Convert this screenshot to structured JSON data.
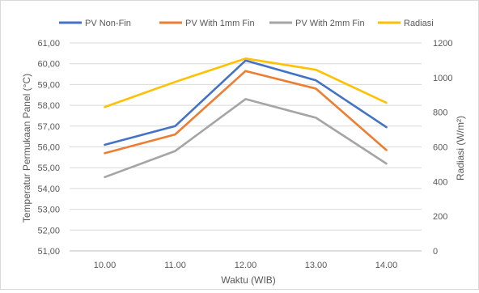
{
  "chart_data": {
    "type": "line",
    "title": "",
    "xlabel": "Waktu (WIB)",
    "ylabel": "Temperatur Permukaan Panel (°C)",
    "y2label": "Radiasi (W/m²)",
    "categories": [
      "10.00",
      "11.00",
      "12.00",
      "13.00",
      "14.00"
    ],
    "ylim": [
      51,
      61
    ],
    "yticks": [
      "51,00",
      "52,00",
      "53,00",
      "54,00",
      "55,00",
      "56,00",
      "57,00",
      "58,00",
      "59,00",
      "60,00",
      "61,00"
    ],
    "y2lim": [
      0,
      1200
    ],
    "y2ticks": [
      "0",
      "200",
      "400",
      "600",
      "800",
      "1000",
      "1200"
    ],
    "grid": true,
    "legend_position": "top",
    "series": [
      {
        "name": "PV Non-Fin",
        "axis": "left",
        "color": "#4472C4",
        "values": [
          56.1,
          57.0,
          60.15,
          59.2,
          56.95
        ]
      },
      {
        "name": "PV With 1mm Fin",
        "axis": "left",
        "color": "#ED7D31",
        "values": [
          55.7,
          56.6,
          59.65,
          58.8,
          55.85
        ]
      },
      {
        "name": "PV With 2mm Fin",
        "axis": "left",
        "color": "#A5A5A5",
        "values": [
          54.55,
          55.8,
          58.3,
          57.4,
          55.2
        ]
      },
      {
        "name": "Radiasi",
        "axis": "right",
        "color": "#FFC000",
        "values": [
          830,
          975,
          1110,
          1045,
          855
        ]
      }
    ]
  }
}
